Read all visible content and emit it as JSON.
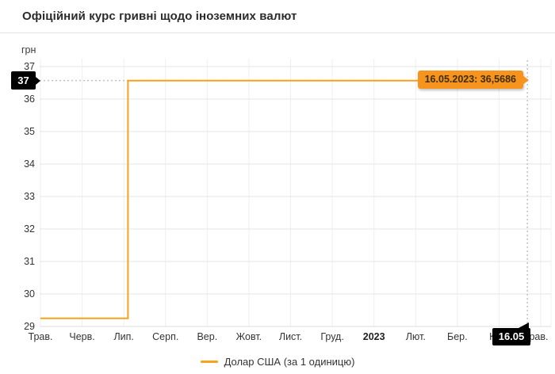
{
  "header": {
    "title": "Офіційний курс гривні щодо іноземних валют"
  },
  "chart": {
    "unit_label": "грн",
    "crosshair": {
      "y_badge": "37",
      "x_badge": "16.05"
    },
    "tooltip": {
      "text": "16.05.2023: 36,5686"
    },
    "legend": {
      "label": "Долар США (за 1 одиницю)"
    }
  },
  "chart_data": {
    "type": "line",
    "title": "Офіційний курс гривні щодо іноземних валют",
    "xlabel": "",
    "ylabel": "грн",
    "ylim": [
      29,
      37
    ],
    "yticks": [
      29,
      30,
      31,
      32,
      33,
      34,
      35,
      36,
      37
    ],
    "x_tick_labels": [
      "Трав.",
      "Черв.",
      "Лип.",
      "Серп.",
      "Вер.",
      "Жовт.",
      "Лист.",
      "Груд.",
      "2023",
      "Лют.",
      "Бер.",
      "Квіт.",
      "Трав."
    ],
    "bold_x_label": "2023",
    "grid": true,
    "legend_position": "bottom-center",
    "series": [
      {
        "name": "Долар США (за 1 одиницю)",
        "color": "#f9a11a",
        "points": [
          {
            "month_index": 0.0,
            "value": 29.25
          },
          {
            "month_index": 2.1,
            "value": 29.25
          },
          {
            "month_index": 2.1,
            "value": 36.5686
          },
          {
            "month_index": 11.68,
            "value": 36.5686
          }
        ],
        "note": "Step line: flat near 29.25 UAH/USD from May 2022, jumps to 36.5686 in July 2022, flat through 16.05.2023"
      }
    ],
    "last_point": {
      "date": "16.05.2023",
      "value": 36.5686,
      "display": "16.05.2023: 36,5686",
      "crosshair_y_rounded": "37"
    }
  }
}
